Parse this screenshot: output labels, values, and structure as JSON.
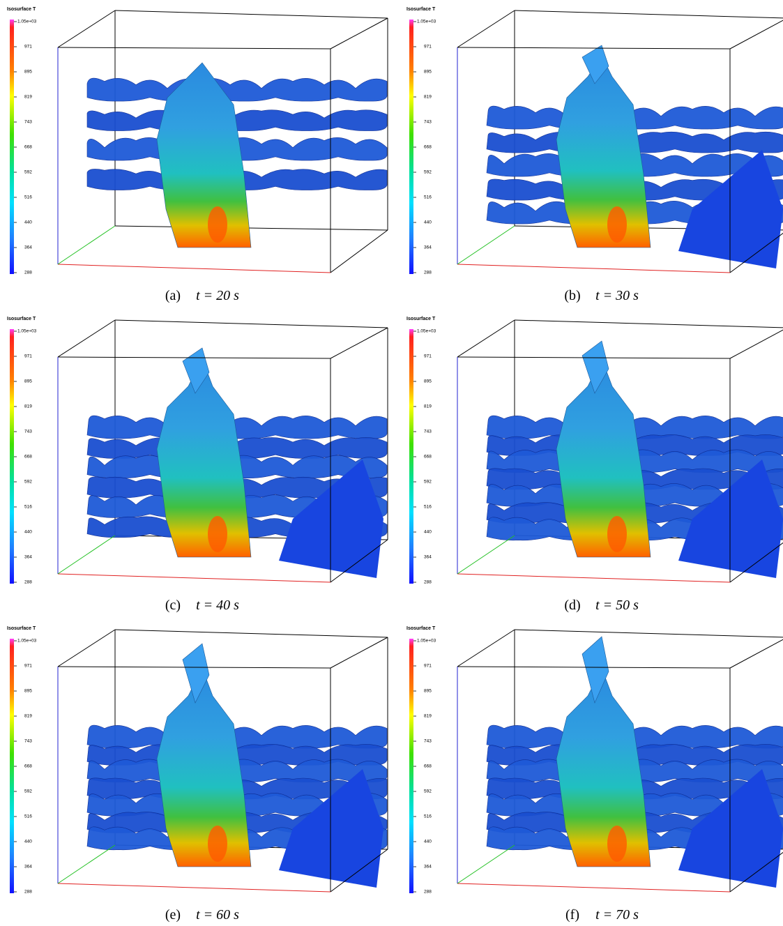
{
  "colorbar": {
    "title": "Isosurface T",
    "ticks": [
      "1.05e+03",
      "971",
      "895",
      "819",
      "743",
      "668",
      "592",
      "516",
      "440",
      "364",
      "288"
    ]
  },
  "panels": [
    {
      "label": "(a)",
      "caption": "t = 20 s"
    },
    {
      "label": "(b)",
      "caption": "t = 30 s"
    },
    {
      "label": "(c)",
      "caption": "t = 40 s"
    },
    {
      "label": "(d)",
      "caption": "t = 50 s"
    },
    {
      "label": "(e)",
      "caption": "t = 60 s"
    },
    {
      "label": "(f)",
      "caption": "t = 70 s"
    }
  ]
}
